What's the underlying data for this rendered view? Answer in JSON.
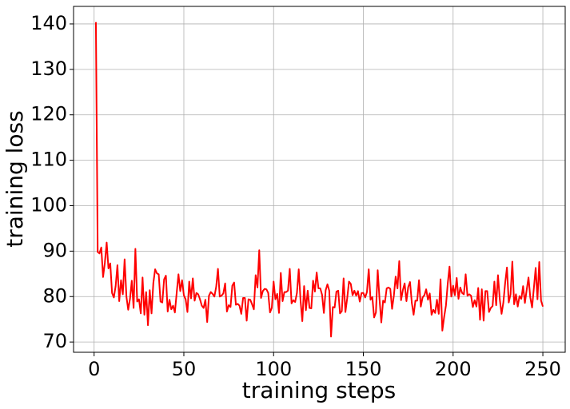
{
  "chart_data": {
    "type": "line",
    "xlabel": "training steps",
    "ylabel": "training loss",
    "color": "#ff0000",
    "grid": true,
    "xlim": [
      -11.45,
      262.45
    ],
    "ylim": [
      67.74,
      143.86
    ],
    "xticks": [
      0,
      50,
      100,
      150,
      200,
      250
    ],
    "yticks": [
      70,
      80,
      90,
      100,
      110,
      120,
      130,
      140
    ],
    "x": [
      1,
      2,
      3,
      4,
      5,
      6,
      7,
      8,
      9,
      10,
      11,
      12,
      13,
      14,
      15,
      16,
      17,
      18,
      19,
      20,
      21,
      22,
      23,
      24,
      25,
      26,
      27,
      28,
      29,
      30,
      31,
      32,
      33,
      34,
      35,
      36,
      37,
      38,
      39,
      40,
      41,
      42,
      43,
      44,
      45,
      46,
      47,
      48,
      49,
      50,
      51,
      52,
      53,
      54,
      55,
      56,
      57,
      58,
      59,
      60,
      61,
      62,
      63,
      64,
      65,
      66,
      67,
      68,
      69,
      70,
      71,
      72,
      73,
      74,
      75,
      76,
      77,
      78,
      79,
      80,
      81,
      82,
      83,
      84,
      85,
      86,
      87,
      88,
      89,
      90,
      91,
      92,
      93,
      94,
      95,
      96,
      97,
      98,
      99,
      100,
      101,
      102,
      103,
      104,
      105,
      106,
      107,
      108,
      109,
      110,
      111,
      112,
      113,
      114,
      115,
      116,
      117,
      118,
      119,
      120,
      121,
      122,
      123,
      124,
      125,
      126,
      127,
      128,
      129,
      130,
      131,
      132,
      133,
      134,
      135,
      136,
      137,
      138,
      139,
      140,
      141,
      142,
      143,
      144,
      145,
      146,
      147,
      148,
      149,
      150,
      151,
      152,
      153,
      154,
      155,
      156,
      157,
      158,
      159,
      160,
      161,
      162,
      163,
      164,
      165,
      166,
      167,
      168,
      169,
      170,
      171,
      172,
      173,
      174,
      175,
      176,
      177,
      178,
      179,
      180,
      181,
      182,
      183,
      184,
      185,
      186,
      187,
      188,
      189,
      190,
      191,
      192,
      193,
      194,
      195,
      196,
      197,
      198,
      199,
      200,
      201,
      202,
      203,
      204,
      205,
      206,
      207,
      208,
      209,
      210,
      211,
      212,
      213,
      214,
      215,
      216,
      217,
      218,
      219,
      220,
      221,
      222,
      223,
      224,
      225,
      226,
      227,
      228,
      229,
      230,
      231,
      232,
      233,
      234,
      235,
      236,
      237,
      238,
      239,
      240,
      241,
      242,
      243,
      244,
      245,
      246,
      247,
      248,
      249,
      250
    ],
    "values": [
      140.4,
      89.8,
      89.5,
      90.8,
      84.3,
      87.5,
      91.9,
      86.2,
      87.3,
      80.8,
      79.8,
      82.3,
      86.9,
      79.0,
      83.6,
      80.5,
      88.2,
      80.0,
      77.1,
      79.5,
      83.5,
      77.5,
      90.5,
      78.9,
      79.4,
      76.3,
      84.2,
      76.0,
      81.0,
      73.7,
      81.4,
      76.3,
      83.0,
      86.0,
      85.1,
      84.9,
      78.9,
      78.7,
      83.8,
      84.6,
      76.7,
      79.3,
      77.2,
      78.0,
      76.5,
      80.8,
      84.9,
      81.2,
      83.6,
      80.3,
      79.4,
      76.6,
      83.3,
      79.6,
      84.0,
      79.1,
      80.8,
      80.5,
      79.4,
      78.0,
      77.5,
      79.3,
      74.4,
      80.2,
      81.0,
      80.6,
      80.0,
      82.1,
      86.1,
      80.0,
      80.2,
      80.7,
      82.9,
      76.7,
      78.1,
      77.7,
      82.4,
      83.1,
      78.2,
      78.4,
      78.0,
      76.2,
      79.7,
      79.7,
      74.7,
      79.4,
      79.3,
      78.3,
      77.2,
      84.7,
      82.0,
      90.2,
      79.7,
      81.2,
      81.7,
      81.6,
      80.8,
      76.5,
      77.5,
      83.3,
      79.4,
      80.6,
      76.4,
      85.2,
      79.0,
      81.0,
      81.0,
      81.3,
      86.1,
      78.5,
      79.2,
      78.8,
      80.8,
      86.0,
      79.2,
      74.6,
      82.3,
      77.0,
      81.3,
      77.5,
      77.4,
      83.5,
      81.1,
      85.3,
      81.8,
      81.8,
      80.4,
      76.4,
      81.4,
      82.7,
      81.3,
      71.2,
      77.7,
      77.6,
      81.1,
      81.3,
      76.3,
      76.8,
      84.0,
      76.6,
      79.6,
      83.3,
      82.8,
      80.3,
      81.3,
      80.2,
      81.2,
      78.9,
      80.8,
      80.8,
      79.8,
      81.0,
      86.0,
      79.3,
      79.9,
      75.4,
      76.5,
      85.8,
      79.5,
      74.3,
      79.1,
      78.7,
      81.8,
      82.0,
      81.7,
      77.3,
      80.2,
      84.4,
      81.8,
      87.8,
      79.2,
      81.4,
      82.9,
      79.0,
      82.1,
      83.2,
      78.6,
      76.0,
      79.1,
      79.1,
      83.6,
      77.8,
      79.8,
      80.3,
      81.6,
      79.3,
      80.7,
      76.0,
      77.1,
      76.4,
      79.3,
      76.2,
      83.8,
      72.5,
      75.5,
      78.0,
      82.8,
      86.6,
      80.0,
      82.4,
      80.3,
      84.1,
      79.5,
      82.0,
      80.8,
      80.5,
      84.9,
      80.2,
      80.5,
      80.2,
      77.7,
      79.2,
      77.8,
      81.9,
      74.9,
      81.6,
      74.7,
      81.2,
      81.2,
      76.6,
      77.5,
      77.9,
      83.3,
      78.1,
      84.7,
      79.4,
      76.2,
      78.7,
      83.0,
      86.4,
      78.7,
      80.5,
      87.7,
      78.3,
      80.5,
      77.8,
      80.1,
      79.5,
      82.3,
      78.6,
      81.5,
      84.2,
      79.8,
      77.6,
      81.9,
      86.3,
      79.4,
      87.6,
      79.1,
      77.8
    ]
  }
}
